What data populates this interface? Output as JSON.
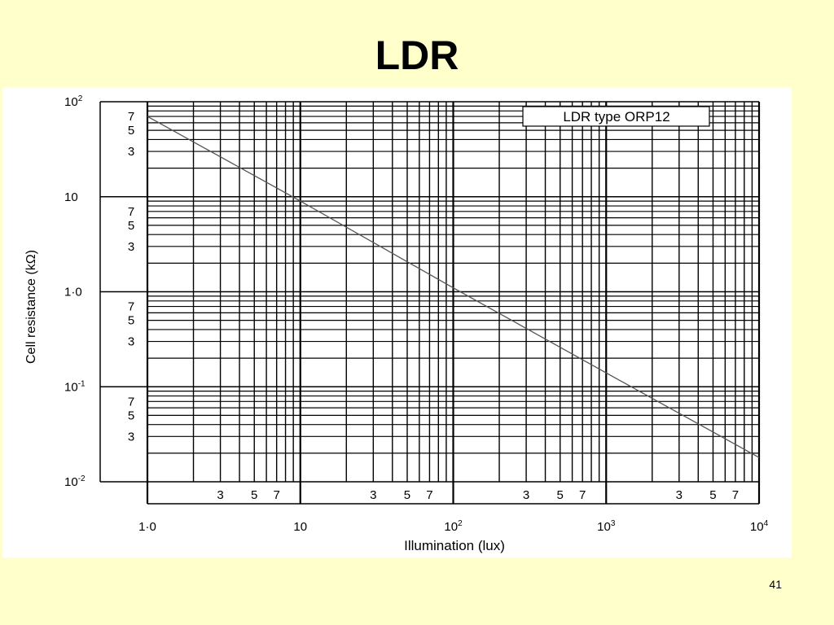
{
  "slide": {
    "title": "LDR",
    "page_number": "41",
    "background_color": "#FFFFCC"
  },
  "chart_data": {
    "type": "line",
    "title": "LDR type ORP12",
    "xlabel": "Illumination (lux)",
    "ylabel": "Cell resistance (kΩ)",
    "x_scale": "log",
    "y_scale": "log",
    "xlim": [
      1,
      10000
    ],
    "ylim": [
      0.01,
      100
    ],
    "grid": true,
    "x_major_ticks": [
      {
        "value": 1,
        "label": "1·0"
      },
      {
        "value": 10,
        "label": "10"
      },
      {
        "value": 100,
        "label": "10",
        "sup": "2"
      },
      {
        "value": 1000,
        "label": "10",
        "sup": "3"
      },
      {
        "value": 10000,
        "label": "10",
        "sup": "4"
      }
    ],
    "y_major_ticks": [
      {
        "value": 0.01,
        "label": "10",
        "sup": "-2"
      },
      {
        "value": 0.1,
        "label": "10",
        "sup": "-1"
      },
      {
        "value": 1,
        "label": "1·0"
      },
      {
        "value": 10,
        "label": "10"
      },
      {
        "value": 100,
        "label": "10",
        "sup": "2"
      }
    ],
    "minor_tick_labels": [
      "3",
      "5",
      "7"
    ],
    "series": [
      {
        "name": "LDR type ORP12",
        "color": "#555555",
        "points": [
          {
            "x": 1,
            "y": 70
          },
          {
            "x": 10,
            "y": 9
          },
          {
            "x": 100,
            "y": 1.1
          },
          {
            "x": 1000,
            "y": 0.14
          },
          {
            "x": 10000,
            "y": 0.018
          }
        ]
      }
    ]
  }
}
